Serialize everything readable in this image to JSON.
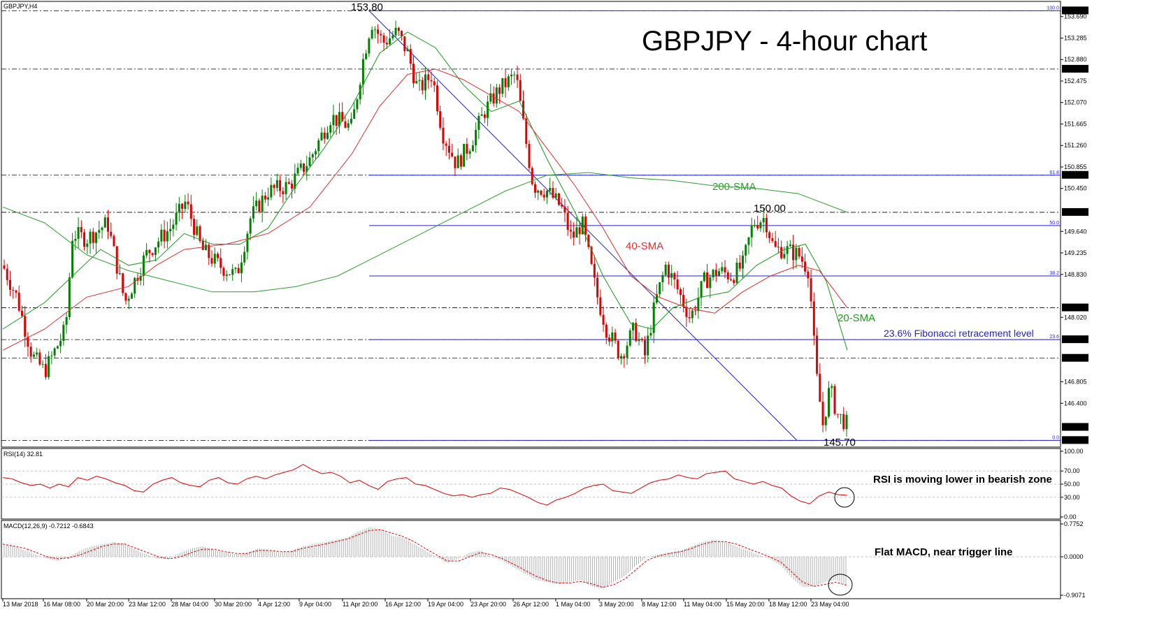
{
  "symbol_label": "GBPJPY,H4",
  "title": "GBPJPY - 4-hour chart",
  "price_labels": {
    "high": "153.80",
    "mid_high": "150.00",
    "low": "145.70"
  },
  "annotations": {
    "sma200": "200-SMA",
    "sma40": "40-SMA",
    "sma20": "20-SMA",
    "fib": "23.6% Fibonacci retracement level",
    "rsi_note": "RSI is moving lower in bearish zone",
    "macd_note": "Flat MACD, near trigger line"
  },
  "rsi_header": "RSI(14) 32.81",
  "macd_header": "MACD(12,26,9) -0.7212 -0.6843",
  "colors": {
    "bull": "#008000",
    "bear": "#e00000",
    "sma20": "#1a9a1a",
    "sma40": "#e03030",
    "sma200": "#2f9f2f",
    "fib": "#1f1fd0",
    "rsi": "#e00000",
    "macd_hist": "#b0b0b0",
    "macd_signal": "#e00000"
  },
  "chart_data": {
    "type": "candlestick",
    "panes": [
      "price",
      "rsi",
      "macd"
    ],
    "price_axis": {
      "ylim": [
        145.6,
        153.95
      ],
      "ticks": [
        "153.690",
        "153.285",
        "152.880",
        "152.475",
        "152.070",
        "151.665",
        "151.260",
        "150.855",
        "150.450",
        "149.640",
        "149.235",
        "148.830",
        "148.020",
        "146.805",
        "146.400"
      ],
      "highlighted": [
        "153.800",
        "152.700",
        "150.700",
        "150.000",
        "148.200",
        "147.600",
        "147.250",
        "145.948",
        "145.700"
      ]
    },
    "horizontal_levels": [
      153.8,
      152.7,
      150.7,
      150.0,
      148.2,
      147.6,
      147.25,
      145.7
    ],
    "fibonacci": [
      {
        "label": "100.0",
        "price": 153.8
      },
      {
        "label": "61.8",
        "price": 150.7
      },
      {
        "label": "50.0",
        "price": 149.75
      },
      {
        "label": "38.2",
        "price": 148.8
      },
      {
        "label": "23.6",
        "price": 147.6
      },
      {
        "label": "0.0",
        "price": 145.7
      }
    ],
    "x_labels": [
      "13 Mar 2018",
      "16 Mar 08:00",
      "20 Mar 20:00",
      "23 Mar 12:00",
      "28 Mar 04:00",
      "30 Mar 20:00",
      "4 Apr 12:00",
      "9 Apr 04:00",
      "11 Apr 20:00",
      "16 Apr 12:00",
      "19 Apr 04:00",
      "23 Apr 20:00",
      "26 Apr 12:00",
      "1 May 04:00",
      "3 May 20:00",
      "8 May 12:00",
      "11 May 04:00",
      "15 May 20:00",
      "18 May 12:00",
      "23 May 04:00"
    ],
    "close_path": [
      [
        0,
        149.0
      ],
      [
        20,
        148.4
      ],
      [
        42,
        147.3
      ],
      [
        60,
        147.0
      ],
      [
        90,
        147.8
      ],
      [
        100,
        149.6
      ],
      [
        120,
        149.5
      ],
      [
        150,
        149.8
      ],
      [
        175,
        148.3
      ],
      [
        205,
        149.2
      ],
      [
        225,
        149.5
      ],
      [
        240,
        149.7
      ],
      [
        262,
        150.2
      ],
      [
        285,
        149.3
      ],
      [
        310,
        149.0
      ],
      [
        335,
        148.8
      ],
      [
        355,
        149.9
      ],
      [
        380,
        150.4
      ],
      [
        410,
        150.5
      ],
      [
        440,
        151.0
      ],
      [
        470,
        151.8
      ],
      [
        500,
        151.6
      ],
      [
        515,
        152.8
      ],
      [
        528,
        153.6
      ],
      [
        545,
        153.2
      ],
      [
        565,
        153.4
      ],
      [
        580,
        153.0
      ],
      [
        595,
        152.3
      ],
      [
        615,
        152.6
      ],
      [
        630,
        151.5
      ],
      [
        650,
        150.9
      ],
      [
        670,
        151.3
      ],
      [
        690,
        151.9
      ],
      [
        710,
        152.3
      ],
      [
        735,
        152.6
      ],
      [
        750,
        151.3
      ],
      [
        760,
        150.5
      ],
      [
        780,
        150.4
      ],
      [
        800,
        150.1
      ],
      [
        815,
        149.5
      ],
      [
        830,
        149.8
      ],
      [
        850,
        148.5
      ],
      [
        865,
        147.8
      ],
      [
        885,
        147.3
      ],
      [
        905,
        147.8
      ],
      [
        920,
        147.3
      ],
      [
        935,
        148.3
      ],
      [
        950,
        149.0
      ],
      [
        965,
        148.6
      ],
      [
        985,
        148.0
      ],
      [
        1005,
        148.7
      ],
      [
        1025,
        148.9
      ],
      [
        1045,
        148.8
      ],
      [
        1060,
        149.0
      ],
      [
        1075,
        149.8
      ],
      [
        1092,
        149.9
      ],
      [
        1105,
        149.3
      ],
      [
        1120,
        149.3
      ],
      [
        1140,
        149.2
      ],
      [
        1155,
        148.9
      ],
      [
        1165,
        147.0
      ],
      [
        1175,
        146.0
      ],
      [
        1185,
        146.7
      ],
      [
        1195,
        146.2
      ],
      [
        1210,
        146.0
      ]
    ],
    "series": [
      {
        "name": "20-SMA",
        "points": [
          [
            0,
            147.8
          ],
          [
            60,
            148.3
          ],
          [
            100,
            148.8
          ],
          [
            140,
            149.3
          ],
          [
            180,
            149.0
          ],
          [
            220,
            149.1
          ],
          [
            260,
            149.6
          ],
          [
            300,
            149.4
          ],
          [
            340,
            149.4
          ],
          [
            380,
            149.7
          ],
          [
            420,
            150.5
          ],
          [
            460,
            151.2
          ],
          [
            500,
            152.0
          ],
          [
            540,
            153.0
          ],
          [
            580,
            153.4
          ],
          [
            620,
            153.1
          ],
          [
            660,
            152.4
          ],
          [
            700,
            151.9
          ],
          [
            740,
            152.1
          ],
          [
            780,
            151.0
          ],
          [
            820,
            150.0
          ],
          [
            860,
            148.8
          ],
          [
            900,
            147.9
          ],
          [
            930,
            147.8
          ],
          [
            960,
            148.2
          ],
          [
            1000,
            148.4
          ],
          [
            1040,
            148.5
          ],
          [
            1080,
            149.0
          ],
          [
            1120,
            149.3
          ],
          [
            1150,
            149.4
          ],
          [
            1180,
            148.7
          ],
          [
            1210,
            147.4
          ]
        ]
      },
      {
        "name": "40-SMA",
        "points": [
          [
            0,
            147.4
          ],
          [
            60,
            147.8
          ],
          [
            120,
            148.4
          ],
          [
            180,
            148.6
          ],
          [
            220,
            149.0
          ],
          [
            260,
            149.3
          ],
          [
            320,
            149.4
          ],
          [
            380,
            149.6
          ],
          [
            440,
            150.1
          ],
          [
            500,
            151.1
          ],
          [
            540,
            152.0
          ],
          [
            580,
            152.6
          ],
          [
            620,
            152.7
          ],
          [
            660,
            152.5
          ],
          [
            700,
            152.2
          ],
          [
            740,
            151.9
          ],
          [
            780,
            151.2
          ],
          [
            820,
            150.5
          ],
          [
            860,
            149.7
          ],
          [
            900,
            148.8
          ],
          [
            940,
            148.4
          ],
          [
            980,
            148.2
          ],
          [
            1020,
            148.1
          ],
          [
            1060,
            148.5
          ],
          [
            1100,
            148.8
          ],
          [
            1140,
            149.0
          ],
          [
            1170,
            148.9
          ],
          [
            1210,
            148.2
          ]
        ]
      },
      {
        "name": "200-SMA",
        "points": [
          [
            0,
            150.1
          ],
          [
            60,
            149.8
          ],
          [
            120,
            149.2
          ],
          [
            180,
            148.9
          ],
          [
            240,
            148.7
          ],
          [
            300,
            148.5
          ],
          [
            360,
            148.5
          ],
          [
            420,
            148.6
          ],
          [
            480,
            148.8
          ],
          [
            540,
            149.2
          ],
          [
            600,
            149.6
          ],
          [
            660,
            150.0
          ],
          [
            720,
            150.4
          ],
          [
            780,
            150.7
          ],
          [
            840,
            150.75
          ],
          [
            900,
            150.65
          ],
          [
            960,
            150.6
          ],
          [
            1020,
            150.5
          ],
          [
            1080,
            150.45
          ],
          [
            1140,
            150.35
          ],
          [
            1210,
            150.0
          ]
        ]
      }
    ],
    "rsi": {
      "ylim": [
        0,
        100
      ],
      "ticks": [
        "100.00",
        "70.00",
        "50.00",
        "30.00",
        "0.00"
      ],
      "values": [
        60,
        58,
        52,
        48,
        50,
        44,
        50,
        46,
        60,
        56,
        62,
        58,
        52,
        48,
        40,
        38,
        50,
        56,
        60,
        52,
        48,
        46,
        56,
        60,
        52,
        50,
        58,
        62,
        58,
        64,
        68,
        72,
        80,
        72,
        66,
        68,
        62,
        52,
        56,
        48,
        42,
        54,
        58,
        60,
        50,
        48,
        42,
        36,
        32,
        34,
        30,
        34,
        36,
        44,
        42,
        36,
        30,
        22,
        18,
        26,
        30,
        36,
        44,
        48,
        50,
        40,
        38,
        36,
        44,
        52,
        56,
        58,
        64,
        60,
        58,
        66,
        68,
        70,
        58,
        54,
        50,
        54,
        48,
        44,
        32,
        24,
        20,
        32,
        38,
        34,
        33
      ]
    },
    "macd": {
      "ylim": [
        -0.9071,
        0.7752
      ],
      "ticks": [
        "0.7752",
        "0.0000",
        "-0.9071"
      ],
      "histogram": [
        0.3,
        0.25,
        0.15,
        0.05,
        -0.05,
        -0.1,
        0.0,
        0.15,
        0.25,
        0.3,
        0.35,
        0.3,
        0.15,
        0.05,
        -0.05,
        -0.05,
        0.1,
        0.2,
        0.25,
        0.15,
        0.1,
        0.05,
        0.1,
        0.2,
        0.15,
        0.1,
        0.15,
        0.25,
        0.3,
        0.35,
        0.4,
        0.45,
        0.6,
        0.7,
        0.65,
        0.5,
        0.45,
        0.3,
        0.15,
        0.0,
        -0.15,
        -0.05,
        0.1,
        0.15,
        0.0,
        -0.1,
        -0.25,
        -0.4,
        -0.55,
        -0.6,
        -0.65,
        -0.6,
        -0.55,
        -0.7,
        -0.75,
        -0.6,
        -0.45,
        -0.2,
        0.0,
        0.05,
        0.1,
        0.15,
        0.25,
        0.35,
        0.4,
        0.35,
        0.25,
        0.15,
        0.05,
        -0.05,
        -0.2,
        -0.5,
        -0.72,
        -0.7,
        -0.6,
        -0.55,
        -0.68
      ],
      "signal": [
        0.3,
        0.25,
        0.2,
        0.1,
        0.0,
        -0.05,
        -0.02,
        0.05,
        0.15,
        0.25,
        0.3,
        0.3,
        0.2,
        0.1,
        0.0,
        -0.05,
        0.0,
        0.1,
        0.18,
        0.18,
        0.12,
        0.08,
        0.08,
        0.15,
        0.15,
        0.12,
        0.12,
        0.2,
        0.25,
        0.3,
        0.36,
        0.42,
        0.52,
        0.62,
        0.64,
        0.56,
        0.48,
        0.36,
        0.2,
        0.05,
        -0.1,
        -0.1,
        0.0,
        0.1,
        0.05,
        -0.05,
        -0.18,
        -0.32,
        -0.46,
        -0.56,
        -0.62,
        -0.62,
        -0.58,
        -0.64,
        -0.72,
        -0.66,
        -0.52,
        -0.3,
        -0.08,
        0.02,
        0.08,
        0.12,
        0.2,
        0.3,
        0.36,
        0.36,
        0.3,
        0.2,
        0.1,
        0.0,
        -0.12,
        -0.36,
        -0.6,
        -0.7,
        -0.65,
        -0.6,
        -0.68
      ]
    }
  }
}
